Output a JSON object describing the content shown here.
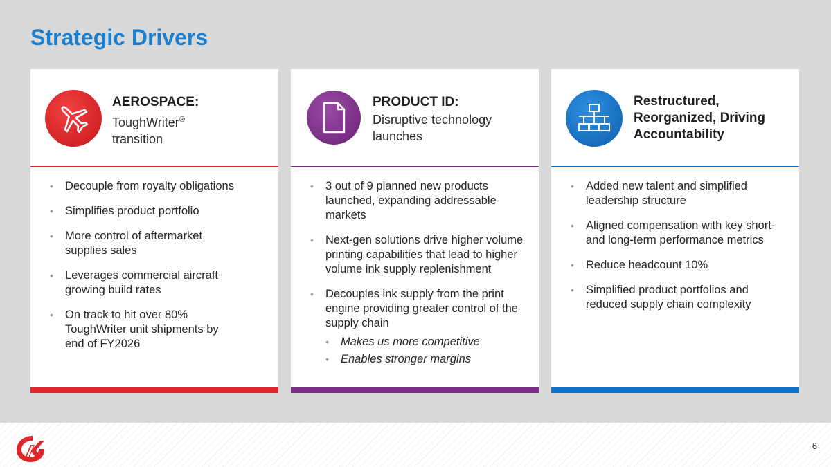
{
  "slide": {
    "title": "Strategic Drivers",
    "page_number": "6"
  },
  "colors": {
    "title_blue": "#1a7fd0",
    "red": "#e0262b",
    "purple": "#7b2f86",
    "blue": "#1472c6"
  },
  "cards": [
    {
      "icon": "airplane-icon",
      "title": "AEROSPACE:",
      "subtitle_main": "ToughWriter",
      "subtitle_sup": "®",
      "subtitle_rest": "transition",
      "bullets": [
        "Decouple from royalty obligations",
        "Simplifies product portfolio",
        "More control of aftermarket supplies sales",
        "Leverages commercial aircraft growing build rates",
        "On track to hit over 80% ToughWriter unit shipments by end of FY2026"
      ]
    },
    {
      "icon": "document-icon",
      "title": "PRODUCT ID:",
      "subtitle": "Disruptive technology launches",
      "bullets": [
        "3 out of 9 planned new products launched, expanding addressable markets",
        "Next-gen solutions drive higher volume printing capabilities that lead to higher volume ink supply replenishment",
        "Decouples ink supply from the print engine providing greater control of the supply chain"
      ],
      "sub_bullets": [
        "Makes us more competitive",
        "Enables stronger margins"
      ]
    },
    {
      "icon": "org-chart-icon",
      "title": "Restructured, Reorganized, Driving Accountability",
      "bullets": [
        "Added new talent and simplified leadership structure",
        "Aligned compensation with key short- and long-term performance metrics",
        "Reduce headcount 10%",
        "Simplified product portfolios and reduced supply chain complexity"
      ]
    }
  ]
}
